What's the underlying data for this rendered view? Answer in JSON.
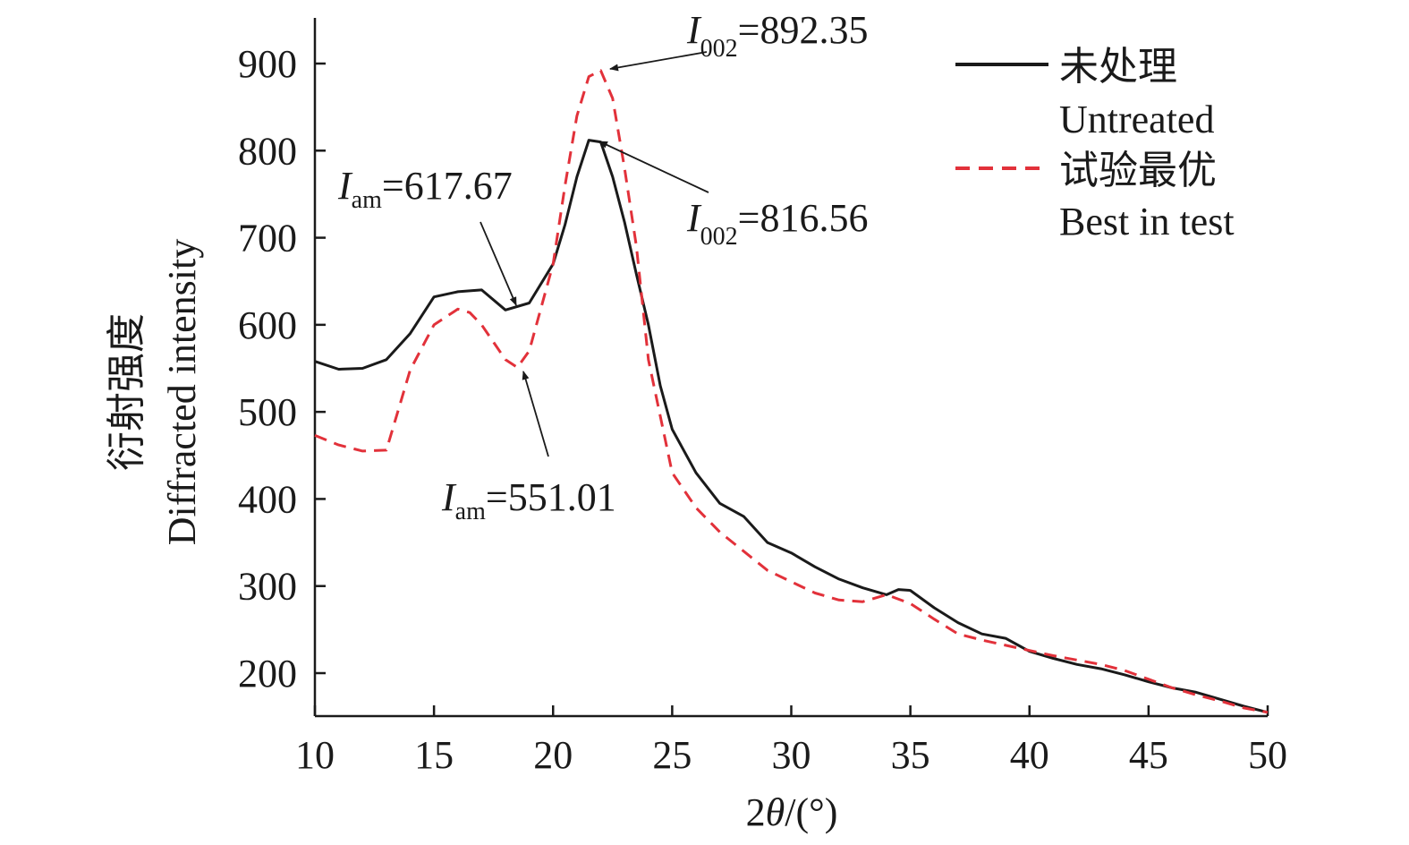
{
  "chart_data": {
    "type": "line",
    "xlabel": {
      "prefix": "2",
      "symbol": "θ",
      "suffix": "/(°)"
    },
    "ylabel": {
      "zh": "衍射强度",
      "en": "Diffracted intensity"
    },
    "xlim": [
      10,
      50
    ],
    "ylim": [
      150,
      950
    ],
    "x_ticks": [
      10,
      15,
      20,
      25,
      30,
      35,
      40,
      45,
      50
    ],
    "y_ticks": [
      200,
      300,
      400,
      500,
      600,
      700,
      800,
      900
    ],
    "grid": false,
    "legend_position": "top-right",
    "series": [
      {
        "name_zh": "未处理",
        "name_en": "Untreated",
        "color": "#1a1a1a",
        "style": "solid",
        "x": [
          10,
          11,
          12,
          13,
          14,
          15,
          16,
          17,
          18,
          19,
          20,
          20.5,
          21,
          21.5,
          22,
          22.5,
          23,
          23.5,
          24,
          24.5,
          25,
          26,
          27,
          28,
          29,
          30,
          31,
          32,
          33,
          34,
          34.5,
          35,
          36,
          37,
          38,
          39,
          40,
          41,
          42,
          43,
          44,
          45,
          46,
          47,
          48,
          49,
          50
        ],
        "y": [
          558,
          549,
          550,
          560,
          590,
          632,
          638,
          640,
          617,
          625,
          670,
          715,
          770,
          812,
          810,
          770,
          718,
          658,
          600,
          530,
          480,
          430,
          395,
          380,
          350,
          338,
          322,
          308,
          298,
          290,
          296,
          295,
          275,
          258,
          245,
          240,
          225,
          217,
          210,
          205,
          198,
          190,
          183,
          178,
          170,
          162,
          155
        ]
      },
      {
        "name_zh": "试验最优",
        "name_en": "Best in test",
        "color": "#e2313a",
        "style": "dashed",
        "x": [
          10,
          11,
          12,
          13,
          14,
          15,
          16,
          16.5,
          17,
          18,
          18.5,
          19,
          20,
          20.5,
          21,
          21.5,
          22,
          22.5,
          23,
          23.5,
          24,
          25,
          26,
          27,
          28,
          29,
          30,
          31,
          32,
          33,
          34,
          35,
          36,
          37,
          38,
          39,
          40,
          41,
          42,
          43,
          44,
          45,
          46,
          47,
          48,
          49,
          50
        ],
        "y": [
          473,
          462,
          455,
          456,
          548,
          600,
          618,
          614,
          600,
          560,
          551,
          570,
          670,
          760,
          840,
          885,
          892,
          860,
          780,
          690,
          560,
          430,
          390,
          362,
          340,
          318,
          305,
          292,
          284,
          282,
          290,
          280,
          262,
          245,
          238,
          232,
          226,
          220,
          215,
          210,
          203,
          193,
          183,
          175,
          168,
          160,
          155
        ]
      }
    ],
    "annotations": [
      {
        "var": "I",
        "sub": "002",
        "text": "=892.35"
      },
      {
        "var": "I",
        "sub": "002",
        "text": "=816.56"
      },
      {
        "var": "I",
        "sub": "am",
        "text": "=617.67"
      },
      {
        "var": "I",
        "sub": "am",
        "text": "=551.01"
      }
    ]
  }
}
